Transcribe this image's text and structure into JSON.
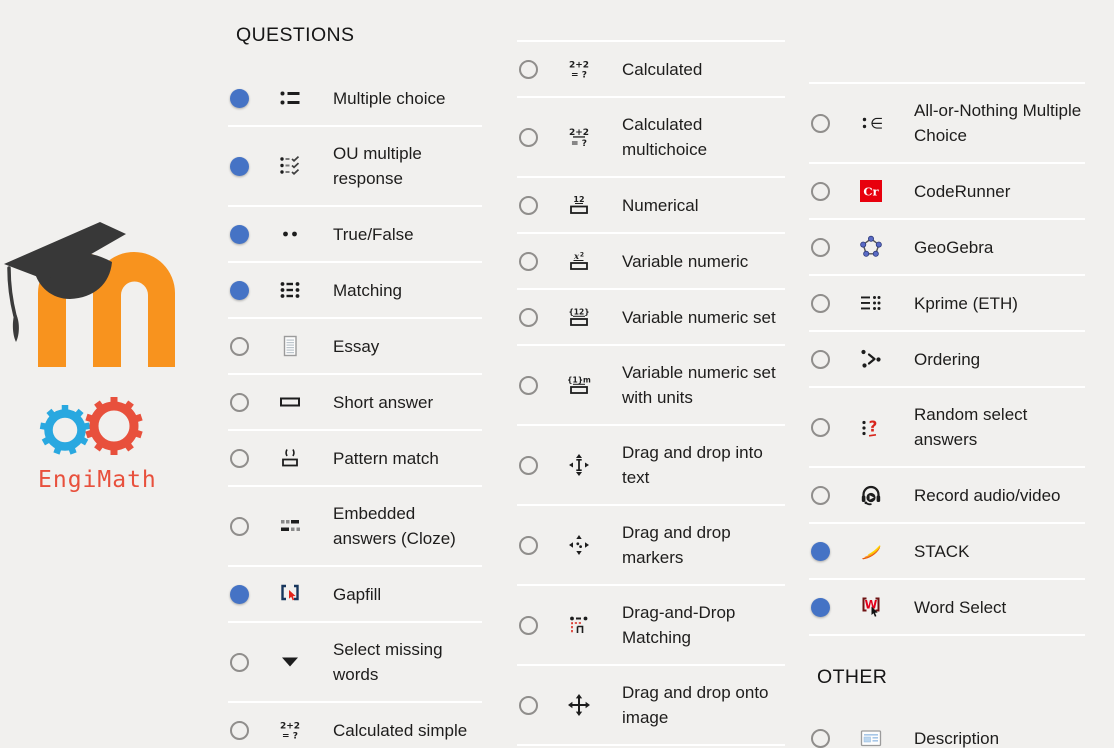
{
  "window": {
    "background": "#F1F0EE"
  },
  "palette": {
    "selected_radio": "#4573C5",
    "radio_ring": "#908E8C",
    "divider": "#FFFFFF",
    "text": "#1E1D1C"
  },
  "branding": {
    "moodle_logo": {
      "name": "moodle-logo",
      "m_color": "#F8931E",
      "cap_color": "#383838"
    },
    "engimath_logo": {
      "text": "EngiMath",
      "text_color": "#E8503C",
      "gear_blue": "#29A8E0",
      "gear_red": "#E8503C"
    }
  },
  "columns": [
    {
      "id": "col-1",
      "blocks": [
        {
          "type": "header",
          "text": "QUESTIONS"
        },
        {
          "type": "item",
          "label": "Multiple choice",
          "icon": "multiple-choice-icon",
          "selected": true
        },
        {
          "type": "item",
          "label": "OU multiple response",
          "icon": "ou-multiple-response-icon",
          "selected": true
        },
        {
          "type": "item",
          "label": "True/False",
          "icon": "true-false-icon",
          "selected": true
        },
        {
          "type": "item",
          "label": "Matching",
          "icon": "matching-icon",
          "selected": true
        },
        {
          "type": "item",
          "label": "Essay",
          "icon": "essay-icon",
          "selected": false
        },
        {
          "type": "item",
          "label": "Short answer",
          "icon": "short-answer-icon",
          "selected": false
        },
        {
          "type": "item",
          "label": "Pattern match",
          "icon": "pattern-match-icon",
          "selected": false
        },
        {
          "type": "item",
          "label": "Embedded answers (Cloze)",
          "icon": "cloze-icon",
          "selected": false
        },
        {
          "type": "item",
          "label": "Gapfill",
          "icon": "gapfill-icon",
          "selected": true
        },
        {
          "type": "item",
          "label": "Select missing words",
          "icon": "select-missing-words-icon",
          "selected": false
        },
        {
          "type": "item",
          "label": "Calculated simple",
          "icon": "calculated-simple-icon",
          "selected": false
        }
      ]
    },
    {
      "id": "col-2",
      "blocks": [
        {
          "type": "item",
          "label": "Calculated",
          "icon": "calculated-icon",
          "selected": false
        },
        {
          "type": "item",
          "label": "Calculated multichoice",
          "icon": "calculated-multichoice-icon",
          "selected": false
        },
        {
          "type": "item",
          "label": "Numerical",
          "icon": "numerical-icon",
          "selected": false
        },
        {
          "type": "item",
          "label": "Variable numeric",
          "icon": "variable-numeric-icon",
          "selected": false
        },
        {
          "type": "item",
          "label": "Variable numeric set",
          "icon": "variable-numeric-set-icon",
          "selected": false
        },
        {
          "type": "item",
          "label": "Variable numeric set with units",
          "icon": "variable-numeric-set-units-icon",
          "selected": false
        },
        {
          "type": "item",
          "label": "Drag and drop into text",
          "icon": "drag-drop-into-text-icon",
          "selected": false
        },
        {
          "type": "item",
          "label": "Drag and drop markers",
          "icon": "drag-drop-markers-icon",
          "selected": false
        },
        {
          "type": "item",
          "label": "Drag-and-Drop Matching",
          "icon": "drag-drop-matching-icon",
          "selected": false
        },
        {
          "type": "item",
          "label": "Drag and drop onto image",
          "icon": "drag-drop-onto-image-icon",
          "selected": false
        }
      ]
    },
    {
      "id": "col-3",
      "blocks": [
        {
          "type": "item",
          "label": "All-or-Nothing Multiple Choice",
          "icon": "all-or-nothing-icon",
          "selected": false
        },
        {
          "type": "item",
          "label": "CodeRunner",
          "icon": "coderunner-icon",
          "selected": false
        },
        {
          "type": "item",
          "label": "GeoGebra",
          "icon": "geogebra-icon",
          "selected": false
        },
        {
          "type": "item",
          "label": "Kprime (ETH)",
          "icon": "kprime-icon",
          "selected": false
        },
        {
          "type": "item",
          "label": "Ordering",
          "icon": "ordering-icon",
          "selected": false
        },
        {
          "type": "item",
          "label": "Random select answers",
          "icon": "random-select-answers-icon",
          "selected": false
        },
        {
          "type": "item",
          "label": "Record audio/video",
          "icon": "record-audio-video-icon",
          "selected": false
        },
        {
          "type": "item",
          "label": "STACK",
          "icon": "stack-icon",
          "selected": true
        },
        {
          "type": "item",
          "label": "Word Select",
          "icon": "word-select-icon",
          "selected": true
        },
        {
          "type": "header",
          "text": "OTHER"
        },
        {
          "type": "item",
          "label": "Description",
          "icon": "description-icon",
          "selected": false
        }
      ]
    }
  ]
}
